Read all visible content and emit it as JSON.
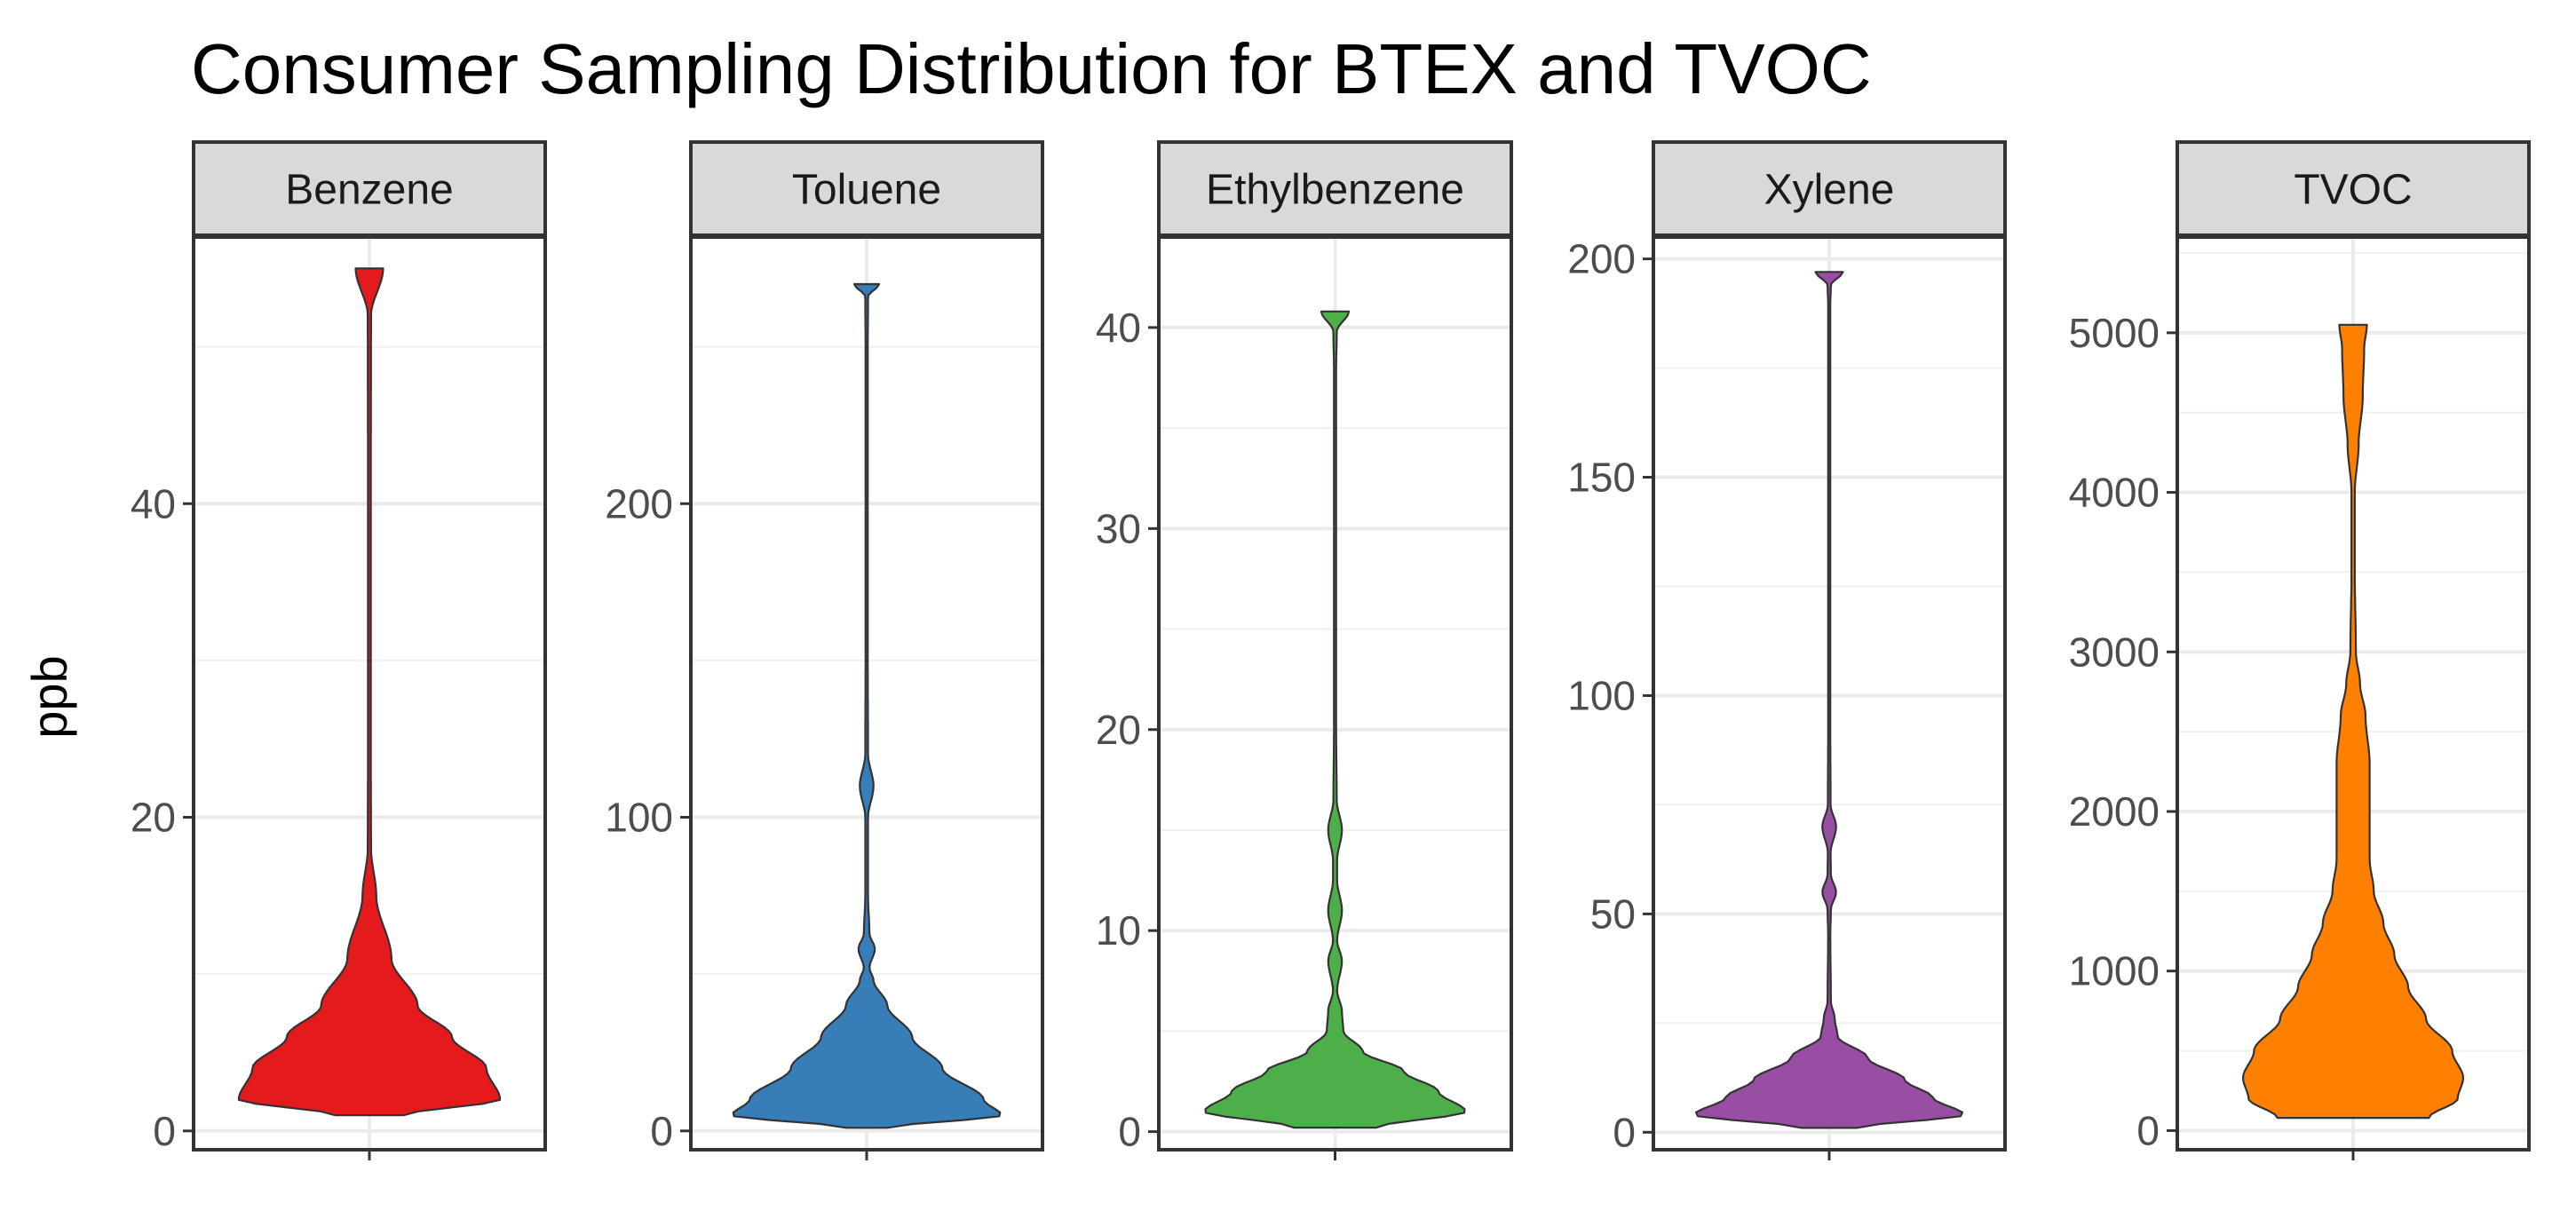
{
  "chart_data": {
    "type": "violin",
    "title": "Consumer Sampling Distribution for BTEX and TVOC",
    "ylabel": "ppb",
    "xlabel": "",
    "facet_colors": [
      "#E41A1C",
      "#377EB8",
      "#4DAF4A",
      "#984EA3",
      "#FF7F00"
    ],
    "facets": [
      {
        "label": "Benzene",
        "color": "#E41A1C",
        "ylim": [
          -1.2,
          57
        ],
        "yticks": [
          0,
          20,
          40
        ],
        "ymin": 1,
        "ymax": 55,
        "density_profile": [
          [
            1,
            0.25
          ],
          [
            2,
            0.95
          ],
          [
            4,
            0.85
          ],
          [
            6,
            0.6
          ],
          [
            8,
            0.35
          ],
          [
            11,
            0.16
          ],
          [
            15,
            0.05
          ],
          [
            18,
            0.012
          ],
          [
            25,
            0.01
          ],
          [
            40,
            0.01
          ],
          [
            52,
            0.012
          ],
          [
            55,
            0.1
          ]
        ]
      },
      {
        "label": "Toluene",
        "color": "#377EB8",
        "ylim": [
          -6,
          285
        ],
        "yticks": [
          0,
          100,
          200
        ],
        "ymin": 1,
        "ymax": 270,
        "density_profile": [
          [
            1,
            0.15
          ],
          [
            5,
            0.98
          ],
          [
            10,
            0.85
          ],
          [
            20,
            0.55
          ],
          [
            30,
            0.33
          ],
          [
            40,
            0.15
          ],
          [
            48,
            0.05
          ],
          [
            52,
            0.02
          ],
          [
            58,
            0.06
          ],
          [
            63,
            0.02
          ],
          [
            75,
            0.01
          ],
          [
            100,
            0.01
          ],
          [
            110,
            0.05
          ],
          [
            120,
            0.01
          ],
          [
            150,
            0.008
          ],
          [
            250,
            0.008
          ],
          [
            266,
            0.01
          ],
          [
            270,
            0.09
          ]
        ]
      },
      {
        "label": "Ethylbenzene",
        "color": "#4DAF4A",
        "ylim": [
          -0.9,
          44.5
        ],
        "yticks": [
          0,
          10,
          20,
          30,
          40
        ],
        "ymin": 0.2,
        "ymax": 40.8,
        "density_profile": [
          [
            0.2,
            0.3
          ],
          [
            1,
            0.95
          ],
          [
            2,
            0.75
          ],
          [
            3,
            0.5
          ],
          [
            4,
            0.2
          ],
          [
            5,
            0.06
          ],
          [
            6,
            0.05
          ],
          [
            7,
            0.015
          ],
          [
            8.5,
            0.05
          ],
          [
            9.5,
            0.015
          ],
          [
            11,
            0.05
          ],
          [
            12.5,
            0.015
          ],
          [
            13.5,
            0.015
          ],
          [
            15,
            0.05
          ],
          [
            16.5,
            0.012
          ],
          [
            20,
            0.008
          ],
          [
            38,
            0.008
          ],
          [
            39.8,
            0.012
          ],
          [
            40.8,
            0.1
          ]
        ]
      },
      {
        "label": "Xylene",
        "color": "#984EA3",
        "ylim": [
          -4,
          205
        ],
        "yticks": [
          0,
          50,
          100,
          150,
          200
        ],
        "ymin": 1,
        "ymax": 197,
        "density_profile": [
          [
            1,
            0.2
          ],
          [
            4,
            0.98
          ],
          [
            8,
            0.75
          ],
          [
            12,
            0.55
          ],
          [
            17,
            0.28
          ],
          [
            22,
            0.06
          ],
          [
            26,
            0.04
          ],
          [
            30,
            0.012
          ],
          [
            45,
            0.008
          ],
          [
            51,
            0.012
          ],
          [
            55,
            0.05
          ],
          [
            59,
            0.012
          ],
          [
            64,
            0.01
          ],
          [
            70,
            0.05
          ],
          [
            75,
            0.01
          ],
          [
            90,
            0.008
          ],
          [
            190,
            0.008
          ],
          [
            194,
            0.012
          ],
          [
            197,
            0.1
          ]
        ]
      },
      {
        "label": "TVOC",
        "color": "#FF7F00",
        "ylim": [
          -120,
          5600
        ],
        "yticks": [
          0,
          1000,
          2000,
          3000,
          4000,
          5000
        ],
        "ymin": 80,
        "ymax": 5050,
        "density_profile": [
          [
            80,
            0.55
          ],
          [
            200,
            0.76
          ],
          [
            330,
            0.8
          ],
          [
            500,
            0.72
          ],
          [
            700,
            0.53
          ],
          [
            900,
            0.4
          ],
          [
            1100,
            0.3
          ],
          [
            1300,
            0.22
          ],
          [
            1500,
            0.15
          ],
          [
            1700,
            0.12
          ],
          [
            2000,
            0.12
          ],
          [
            2300,
            0.12
          ],
          [
            2600,
            0.09
          ],
          [
            2800,
            0.05
          ],
          [
            3000,
            0.02
          ],
          [
            3500,
            0.012
          ],
          [
            4000,
            0.012
          ],
          [
            4300,
            0.04
          ],
          [
            4600,
            0.07
          ],
          [
            4900,
            0.08
          ],
          [
            5050,
            0.1
          ]
        ]
      }
    ]
  }
}
